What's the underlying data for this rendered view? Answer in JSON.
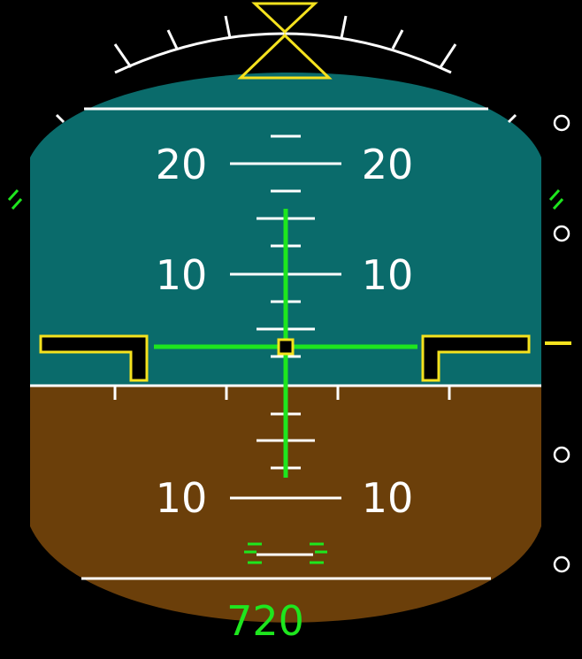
{
  "attitude": {
    "pitch_scale_labels": {
      "up_20": "20",
      "up_10": "10",
      "down_10": "10"
    },
    "radio_altitude": "720"
  },
  "colors": {
    "sky": "#0a6b6b",
    "ground": "#6b3f0a",
    "flight_director": "#1ee61e",
    "aircraft_symbol": "#f5e21e",
    "scale": "#ffffff"
  }
}
